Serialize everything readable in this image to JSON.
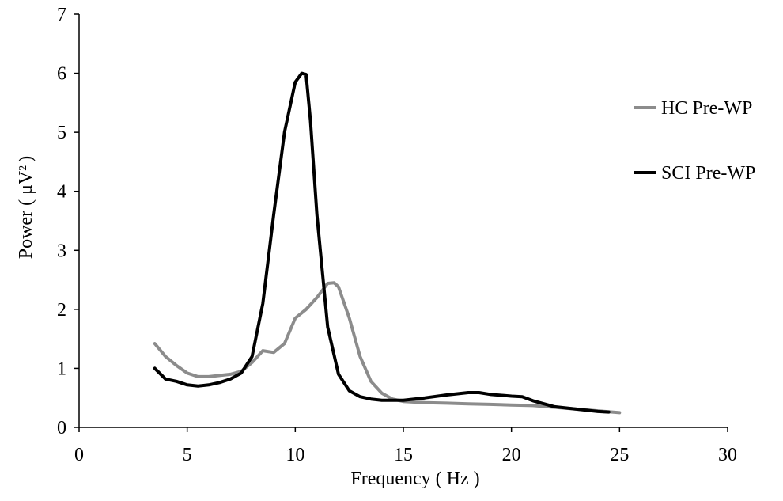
{
  "chart_data": {
    "type": "line",
    "title": "",
    "xlabel": "Frequency ( Hz )",
    "ylabel_main": "Power ( μV",
    "ylabel_sup": "2",
    "ylabel_end": ")",
    "xlim": [
      0,
      30
    ],
    "ylim": [
      0,
      7
    ],
    "xticks": [
      0,
      5,
      10,
      15,
      20,
      25,
      30
    ],
    "yticks": [
      0,
      1,
      2,
      3,
      4,
      5,
      6,
      7
    ],
    "grid": false,
    "legend_position": "right",
    "series": [
      {
        "name": "HC Pre-WP",
        "color": "#8c8c8c",
        "x": [
          3.5,
          4.0,
          4.5,
          5.0,
          5.5,
          6.0,
          6.5,
          7.0,
          7.5,
          8.0,
          8.5,
          9.0,
          9.5,
          10.0,
          10.5,
          11.0,
          11.5,
          11.8,
          12.0,
          12.5,
          13.0,
          13.5,
          14.0,
          14.5,
          15.0,
          16.0,
          17.0,
          18.0,
          19.0,
          20.0,
          21.0,
          22.0,
          23.0,
          24.0,
          25.0
        ],
        "values": [
          1.42,
          1.2,
          1.05,
          0.92,
          0.86,
          0.86,
          0.88,
          0.9,
          0.95,
          1.1,
          1.3,
          1.27,
          1.42,
          1.85,
          2.0,
          2.2,
          2.44,
          2.45,
          2.38,
          1.85,
          1.2,
          0.78,
          0.58,
          0.48,
          0.44,
          0.42,
          0.41,
          0.4,
          0.39,
          0.38,
          0.37,
          0.34,
          0.31,
          0.28,
          0.25
        ]
      },
      {
        "name": "SCI Pre-WP",
        "color": "#000000",
        "x": [
          3.5,
          4.0,
          4.5,
          5.0,
          5.5,
          6.0,
          6.5,
          7.0,
          7.5,
          8.0,
          8.5,
          9.0,
          9.5,
          10.0,
          10.3,
          10.5,
          10.7,
          11.0,
          11.5,
          12.0,
          12.5,
          13.0,
          13.5,
          14.0,
          15.0,
          16.0,
          17.0,
          18.0,
          18.5,
          19.0,
          20.0,
          20.5,
          21.0,
          22.0,
          23.0,
          24.0,
          24.5
        ],
        "values": [
          1.0,
          0.82,
          0.78,
          0.72,
          0.7,
          0.72,
          0.76,
          0.82,
          0.92,
          1.2,
          2.1,
          3.6,
          5.0,
          5.85,
          6.0,
          5.98,
          5.2,
          3.6,
          1.7,
          0.9,
          0.62,
          0.52,
          0.48,
          0.46,
          0.46,
          0.5,
          0.55,
          0.59,
          0.59,
          0.56,
          0.53,
          0.52,
          0.45,
          0.35,
          0.31,
          0.27,
          0.26
        ]
      }
    ]
  }
}
